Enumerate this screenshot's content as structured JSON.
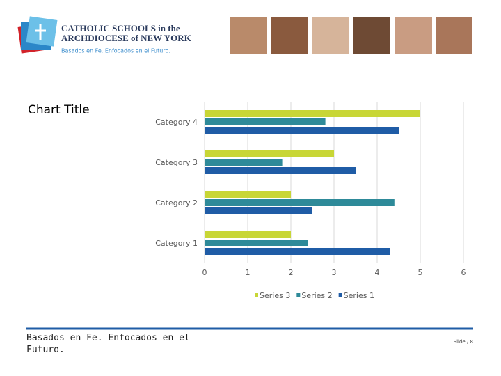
{
  "header": {
    "logo_line1": "CATHOLIC SCHOOLS in the",
    "logo_line2": "ARCHDIOCESE of NEW YORK",
    "tagline": "Basados en Fe. Enfocados en el Futuro."
  },
  "chart_data": {
    "type": "bar",
    "orientation": "horizontal",
    "title": "Chart Title",
    "categories": [
      "Category 1",
      "Category 2",
      "Category 3",
      "Category 4"
    ],
    "series": [
      {
        "name": "Series 1",
        "color": "#1f5ca6",
        "values": [
          4.3,
          2.5,
          3.5,
          4.5
        ]
      },
      {
        "name": "Series 2",
        "color": "#2e8a99",
        "values": [
          2.4,
          4.4,
          1.8,
          2.8
        ]
      },
      {
        "name": "Series 3",
        "color": "#c8d636",
        "values": [
          2,
          2,
          3,
          5
        ]
      }
    ],
    "xlim": [
      0,
      6
    ],
    "xticks": [
      0,
      1,
      2,
      3,
      4,
      5,
      6
    ],
    "grid": true,
    "legend": "bottom"
  },
  "footer": {
    "text": "Basados en Fe. Enfocados en el Futuro.",
    "slide": "Slide / 8"
  }
}
